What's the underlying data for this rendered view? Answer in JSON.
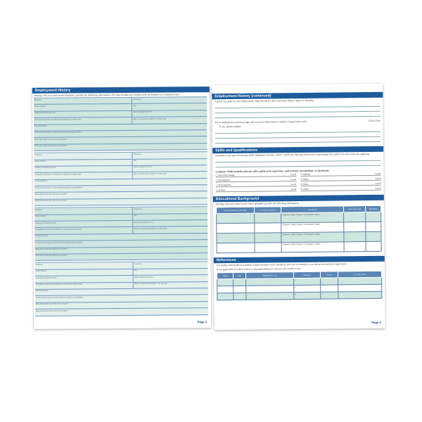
{
  "left": {
    "title": "Employment History",
    "intro": "Starting with your most recent employer, provide the following information. You may include any verified work performed on a volunteer basis.",
    "fields": {
      "employer": "Employer",
      "telephone": "Telephone",
      "street": "Street address",
      "city": "City",
      "state": "State",
      "title": "Starting job title/final job title",
      "dates": "Dates employed  From  To",
      "supervisor": "Immediate supervisor and title (do not abbreviate position title)",
      "contact": "May we contact this employer?  Yes  No  Later",
      "pay": "Pay (if pertinent)",
      "summary": "Summarize the types of work performed and job responsibilities",
      "likemost": "What did you like most about your position?",
      "likeleast": "What did you like least about your position?"
    },
    "job_count": 4,
    "page": "Page 2"
  },
  "right": {
    "title": "Employment History (continued)",
    "gaps": "Explain any gaps in your employment, other than those due to personal illness, injury or disability.",
    "fired": "If you addressed on previous page, have you ever been fired or asked to resign from a job?",
    "yes": "☐Yes",
    "no": "☐No",
    "explain": "If yes, please explain:",
    "skills_title": "Skills and Qualifications",
    "skills_intro": "Summarize any special training, skills, languages, licenses, and/or certificates that may assist you in performing the position for which you are applying.",
    "computer": "Computer Skills (include software titles and level of experience, such as basic, intermediate, or advanced.)",
    "skills": [
      "☐ Word Processing",
      "☐ Internet",
      "☐ Spreadsheet",
      "☐ Other",
      "☐ Presentations",
      "☐ Other",
      "☐ E-mail",
      "☐ Other"
    ],
    "level": "Level",
    "edu_title": "Educational Background",
    "edu_intro": "Starting with your most recent school attended, provide the following information.",
    "edu_cols": [
      "School (Include City and State)",
      "# of Years Completed",
      "Completed?",
      "GPA/ Class Rank",
      "Major/Minor"
    ],
    "edu_opts": "☐Diploma ☐GED ☐Degree ☐Certification ☐Other",
    "ref_title": "References",
    "ref_intro": "List names and telephone numbers of three business/work references who are not related to you and are not previous supervisors.",
    "ref_intro2": "If not applicable, list three school or personal references who are not related to you.",
    "ref_cols": [
      "Name",
      "Title",
      "Relationship to You",
      "Telephone",
      "E-mail",
      "# of Years Known"
    ],
    "phone": "(     )",
    "page": "Page 3"
  }
}
